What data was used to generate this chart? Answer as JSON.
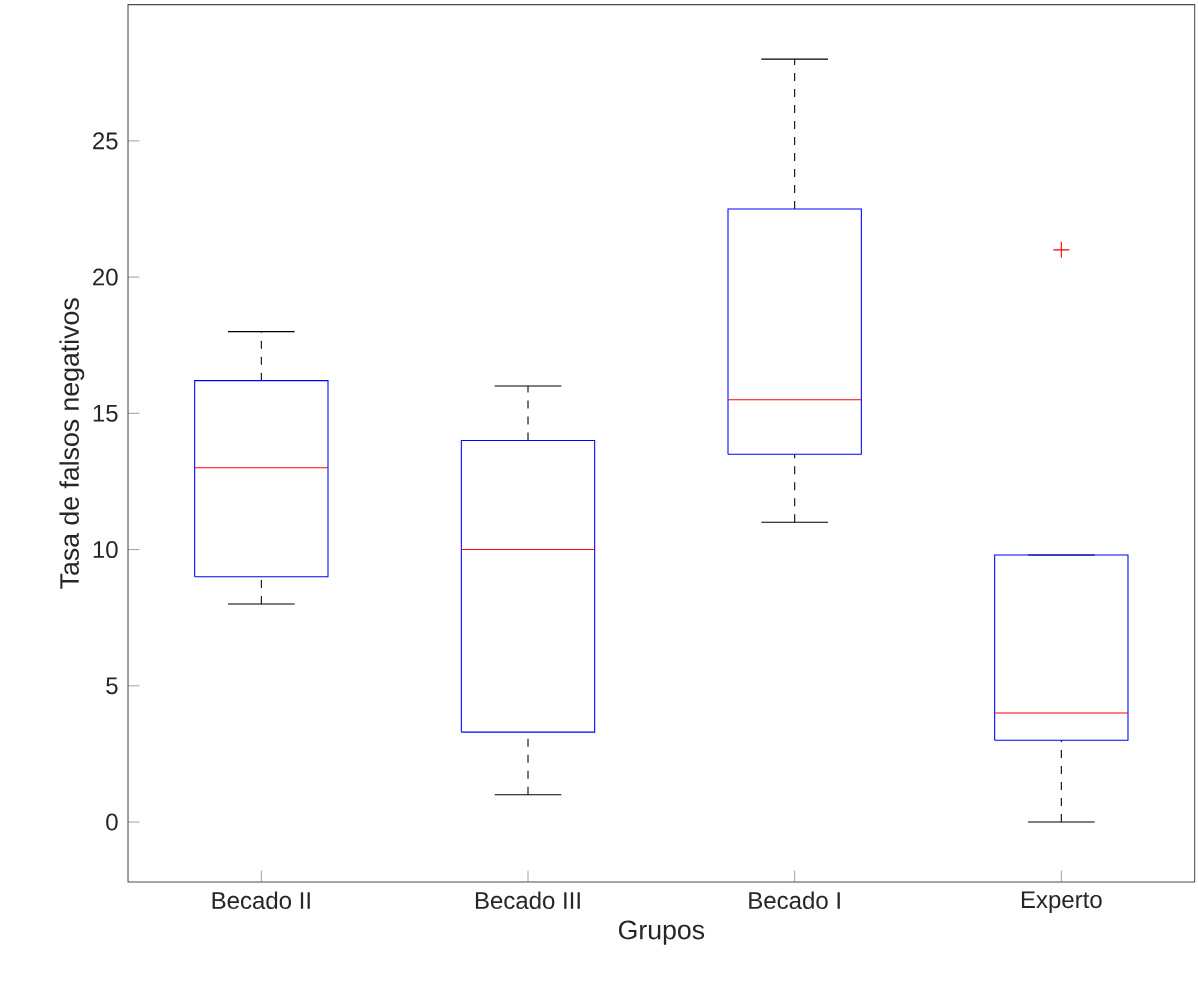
{
  "chart_data": {
    "type": "box",
    "xlabel": "Grupos",
    "ylabel": "Tasa de falsos negativos",
    "categories": [
      "Becado II",
      "Becado III",
      "Becado I",
      "Experto"
    ],
    "boxes": [
      {
        "low": 8,
        "q1": 9,
        "median": 13,
        "q3": 16.2,
        "high": 18
      },
      {
        "low": 1,
        "q1": 3.3,
        "median": 10,
        "q3": 14,
        "high": 16
      },
      {
        "low": 11,
        "q1": 13.5,
        "median": 15.5,
        "q3": 22.5,
        "high": 28
      },
      {
        "low": 0,
        "q1": 3,
        "median": 4,
        "q3": 9.8,
        "high": 9.8,
        "outliers": [
          21
        ]
      }
    ],
    "color": "#0000ff",
    "ylim": [
      -2.2,
      30
    ],
    "yticks": [
      0,
      5,
      10,
      15,
      20,
      25
    ]
  }
}
